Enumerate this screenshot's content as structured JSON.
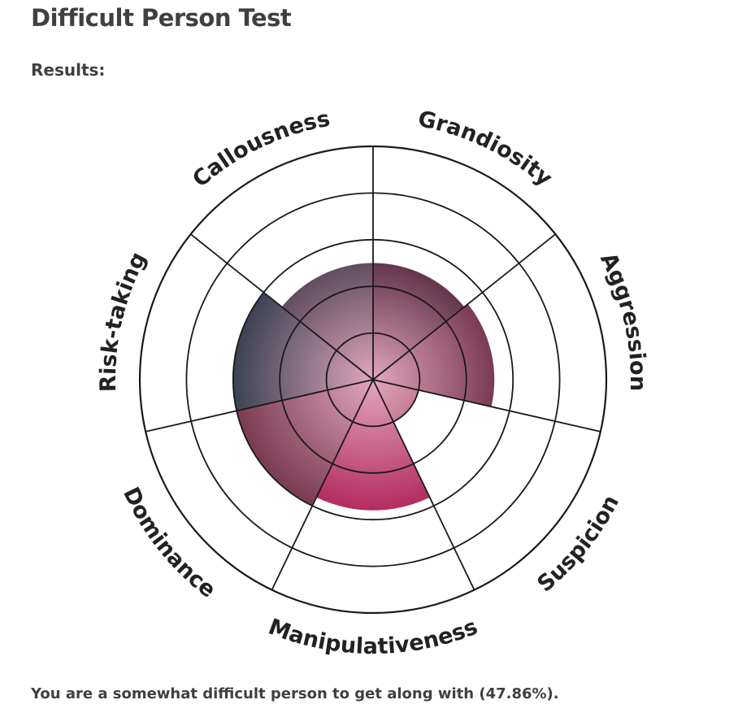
{
  "page": {
    "title": "Difficult Person Test",
    "results_label": "Results:",
    "summary": "You are a somewhat difficult person to get along with (47.86%)."
  },
  "chart_data": {
    "type": "polar-area",
    "max_value": 5,
    "rings": 5,
    "grid": true,
    "categories": [
      "Grandiosity",
      "Aggression",
      "Suspicion",
      "Manipulativeness",
      "Dominance",
      "Risk-taking",
      "Callousness"
    ],
    "values": [
      2.5,
      2.6,
      1.0,
      2.8,
      3.0,
      3.0,
      2.5
    ],
    "colors": {
      "Grandiosity": "#4a1f35",
      "Aggression": "#6b2a44",
      "Suspicion": "#8a3048",
      "Manipulativeness": "#b0245a",
      "Dominance": "#7a3b52",
      "Risk-taking": "#3c4252",
      "Callousness": "#463c4c"
    }
  }
}
